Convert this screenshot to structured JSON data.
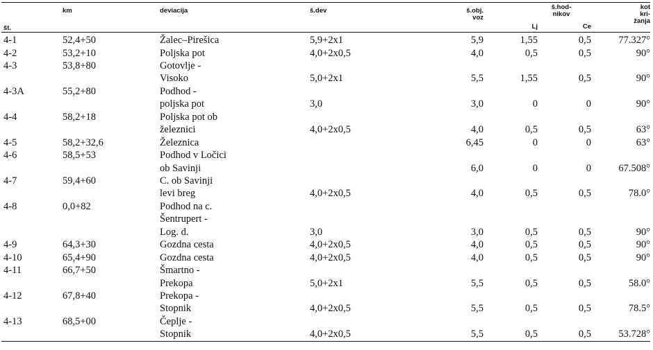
{
  "header": {
    "st": "št.",
    "km": "km",
    "deviacija": "deviacija",
    "sdev": "š.dev",
    "sobj_1": "š.obj.",
    "sobj_2": "voz",
    "shod_1": "š.hod-",
    "shod_2": "nikov",
    "lj": "Lj",
    "ce": "Ce",
    "kot_1": "kot",
    "kot_2": "kri-",
    "kot_3": "žanja"
  },
  "rows": [
    {
      "st": "4-1",
      "km": "52,4+50",
      "dev": "Žalec–Pirešica",
      "sdev": "5,9+2x1",
      "obj": "5,9",
      "lj": "1,55",
      "ce": "0,5",
      "kot": "77.327°"
    },
    {
      "st": "4-2",
      "km": "53,2+10",
      "dev": "Poljska pot",
      "sdev": "4,0+2x0,5",
      "obj": "4,0",
      "lj": "0,5",
      "ce": "0,5",
      "kot": "90°"
    },
    {
      "st": "4-3",
      "km": "53,8+80",
      "dev": "Gotovlje -",
      "sdev": "",
      "obj": "",
      "lj": "",
      "ce": "",
      "kot": ""
    },
    {
      "st": "",
      "km": "",
      "dev": "Visoko",
      "sdev": "5,0+2x1",
      "obj": "5,5",
      "lj": "1,55",
      "ce": "0,5",
      "kot": "90°"
    },
    {
      "st": "4-3A",
      "km": "55,2+80",
      "dev": "Podhod -",
      "sdev": "",
      "obj": "",
      "lj": "",
      "ce": "",
      "kot": ""
    },
    {
      "st": "",
      "km": "",
      "dev": "poljska pot",
      "sdev": "3,0",
      "obj": "3,0",
      "lj": "0",
      "ce": "0",
      "kot": "90°"
    },
    {
      "st": "4-4",
      "km": "58,2+18",
      "dev": "Poljska pot ob",
      "sdev": "",
      "obj": "",
      "lj": "",
      "ce": "",
      "kot": ""
    },
    {
      "st": "",
      "km": "",
      "dev": "železnici",
      "sdev": "4,0+2x0,5",
      "obj": "4,0",
      "lj": "0,5",
      "ce": "0,5",
      "kot": "63°"
    },
    {
      "st": "4-5",
      "km": "58,2+32,6",
      "dev": "Železnica",
      "sdev": "",
      "obj": "6,45",
      "lj": "0",
      "ce": "0",
      "kot": "63°"
    },
    {
      "st": "4-6",
      "km": "58,5+53",
      "dev": "Podhod v Ločici",
      "sdev": "",
      "obj": "",
      "lj": "",
      "ce": "",
      "kot": ""
    },
    {
      "st": "",
      "km": "",
      "dev": "ob Savinji",
      "sdev": "",
      "obj": "6,0",
      "lj": "0",
      "ce": "0",
      "kot": "67.508°"
    },
    {
      "st": "4-7",
      "km": "59,4+60",
      "dev": "C. ob Savinji",
      "sdev": "",
      "obj": "",
      "lj": "",
      "ce": "",
      "kot": ""
    },
    {
      "st": "",
      "km": "",
      "dev": "levi breg",
      "sdev": "4,0+2x0,5",
      "obj": "4,0",
      "lj": "0,5",
      "ce": "0,5",
      "kot": "78.0°"
    },
    {
      "st": "4-8",
      "km": "0,0+82",
      "dev": "Podhod na c.",
      "sdev": "",
      "obj": "",
      "lj": "",
      "ce": "",
      "kot": ""
    },
    {
      "st": "",
      "km": "",
      "dev": "Šentrupert -",
      "sdev": "",
      "obj": "",
      "lj": "",
      "ce": "",
      "kot": ""
    },
    {
      "st": "",
      "km": "",
      "dev": "Log. d.",
      "sdev": "3,0",
      "obj": "3,0",
      "lj": "0,5",
      "ce": "0,5",
      "kot": "90°"
    },
    {
      "st": "4-9",
      "km": "64,3+30",
      "dev": "Gozdna cesta",
      "sdev": "4,0+2x0,5",
      "obj": "4,0",
      "lj": "0,5",
      "ce": "0,5",
      "kot": "90°"
    },
    {
      "st": "4-10",
      "km": "65,4+90",
      "dev": "Gozdna cesta",
      "sdev": "4,0+2x0,5",
      "obj": "4,0",
      "lj": "0,5",
      "ce": "0,5",
      "kot": "90°"
    },
    {
      "st": "4-11",
      "km": "66,7+50",
      "dev": "Šmartno -",
      "sdev": "",
      "obj": "",
      "lj": "",
      "ce": "",
      "kot": ""
    },
    {
      "st": "",
      "km": "",
      "dev": "Prekopa",
      "sdev": "5,0+2x1",
      "obj": "5,5",
      "lj": "0,5",
      "ce": "0,5",
      "kot": "58.0°"
    },
    {
      "st": "4-12",
      "km": "67,8+40",
      "dev": "Prekopa -",
      "sdev": "",
      "obj": "",
      "lj": "",
      "ce": "",
      "kot": ""
    },
    {
      "st": "",
      "km": "",
      "dev": "Stopnik",
      "sdev": "4,0+2x0,5",
      "obj": "5,5",
      "lj": "0,5",
      "ce": "0,5",
      "kot": "78.5°"
    },
    {
      "st": "4-13",
      "km": "68,5+00",
      "dev": "Čeplje -",
      "sdev": "",
      "obj": "",
      "lj": "",
      "ce": "",
      "kot": ""
    },
    {
      "st": "",
      "km": "",
      "dev": "Stopnik",
      "sdev": "4,0+2x0,5",
      "obj": "5,5",
      "lj": "0,5",
      "ce": "0,5",
      "kot": "53.728°"
    }
  ]
}
